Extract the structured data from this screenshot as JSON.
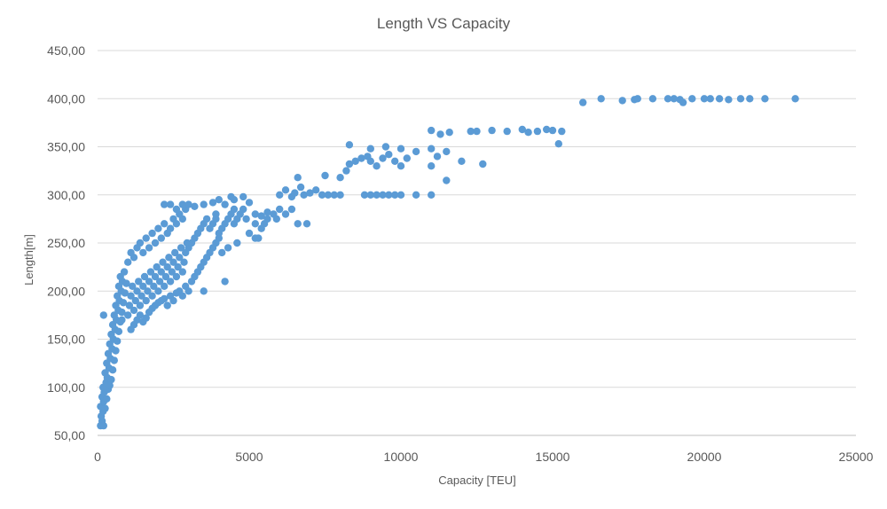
{
  "chart_data": {
    "type": "scatter",
    "title": "Length VS Capacity",
    "xlabel": "Capacity [TEU]",
    "ylabel": "Length[m]",
    "xlim": [
      0,
      25000
    ],
    "ylim": [
      50,
      450
    ],
    "x_ticks": [
      "0",
      "5000",
      "10000",
      "15000",
      "20000",
      "25000"
    ],
    "y_ticks": [
      "50,00",
      "100,00",
      "150,00",
      "200,00",
      "250,00",
      "300,00",
      "350,00",
      "400,00",
      "450,00"
    ],
    "grid": "horizontal",
    "legend": "none",
    "marker_color": "#5B9BD5",
    "series": [
      {
        "points": [
          [
            100,
            60
          ],
          [
            150,
            65
          ],
          [
            200,
            60
          ],
          [
            120,
            70
          ],
          [
            180,
            75
          ],
          [
            100,
            80
          ],
          [
            250,
            78
          ],
          [
            200,
            85
          ],
          [
            150,
            90
          ],
          [
            300,
            88
          ],
          [
            220,
            95
          ],
          [
            180,
            100
          ],
          [
            350,
            98
          ],
          [
            280,
            105
          ],
          [
            400,
            102
          ],
          [
            320,
            110
          ],
          [
            250,
            115
          ],
          [
            450,
            108
          ],
          [
            380,
            120
          ],
          [
            300,
            125
          ],
          [
            500,
            118
          ],
          [
            420,
            130
          ],
          [
            350,
            135
          ],
          [
            550,
            128
          ],
          [
            480,
            140
          ],
          [
            400,
            145
          ],
          [
            600,
            138
          ],
          [
            520,
            150
          ],
          [
            450,
            155
          ],
          [
            650,
            148
          ],
          [
            580,
            160
          ],
          [
            500,
            165
          ],
          [
            700,
            158
          ],
          [
            620,
            170
          ],
          [
            550,
            175
          ],
          [
            750,
            168
          ],
          [
            680,
            180
          ],
          [
            600,
            185
          ],
          [
            800,
            178
          ],
          [
            720,
            190
          ],
          [
            650,
            195
          ],
          [
            850,
            188
          ],
          [
            780,
            200
          ],
          [
            700,
            205
          ],
          [
            900,
            198
          ],
          [
            820,
            210
          ],
          [
            750,
            215
          ],
          [
            950,
            208
          ],
          [
            880,
            220
          ],
          [
            800,
            170
          ],
          [
            1000,
            175
          ],
          [
            1050,
            185
          ],
          [
            1100,
            195
          ],
          [
            1150,
            205
          ],
          [
            1200,
            180
          ],
          [
            1250,
            190
          ],
          [
            1300,
            200
          ],
          [
            1350,
            210
          ],
          [
            1400,
            185
          ],
          [
            1450,
            195
          ],
          [
            1500,
            205
          ],
          [
            1550,
            215
          ],
          [
            1600,
            190
          ],
          [
            1650,
            200
          ],
          [
            1700,
            210
          ],
          [
            1750,
            220
          ],
          [
            1800,
            195
          ],
          [
            1850,
            205
          ],
          [
            1900,
            215
          ],
          [
            1950,
            225
          ],
          [
            2000,
            200
          ],
          [
            2050,
            210
          ],
          [
            2100,
            220
          ],
          [
            2150,
            230
          ],
          [
            2200,
            205
          ],
          [
            2250,
            215
          ],
          [
            2300,
            225
          ],
          [
            2350,
            235
          ],
          [
            2400,
            210
          ],
          [
            2450,
            220
          ],
          [
            2500,
            230
          ],
          [
            2550,
            240
          ],
          [
            2600,
            215
          ],
          [
            2650,
            225
          ],
          [
            2700,
            235
          ],
          [
            2750,
            245
          ],
          [
            2800,
            220
          ],
          [
            2850,
            230
          ],
          [
            2900,
            240
          ],
          [
            2950,
            250
          ],
          [
            1000,
            230
          ],
          [
            1100,
            240
          ],
          [
            1200,
            235
          ],
          [
            1300,
            245
          ],
          [
            1400,
            250
          ],
          [
            1500,
            240
          ],
          [
            1600,
            255
          ],
          [
            1700,
            245
          ],
          [
            1800,
            260
          ],
          [
            1900,
            250
          ],
          [
            2000,
            265
          ],
          [
            2100,
            255
          ],
          [
            2200,
            270
          ],
          [
            2300,
            260
          ],
          [
            2400,
            265
          ],
          [
            2500,
            275
          ],
          [
            2600,
            270
          ],
          [
            2700,
            280
          ],
          [
            2800,
            275
          ],
          [
            2900,
            285
          ],
          [
            1100,
            160
          ],
          [
            1200,
            165
          ],
          [
            1300,
            170
          ],
          [
            1400,
            175
          ],
          [
            1500,
            168
          ],
          [
            1600,
            172
          ],
          [
            1700,
            178
          ],
          [
            1800,
            182
          ],
          [
            1900,
            185
          ],
          [
            2000,
            188
          ],
          [
            2100,
            190
          ],
          [
            2200,
            192
          ],
          [
            2300,
            185
          ],
          [
            2400,
            195
          ],
          [
            2500,
            190
          ],
          [
            2600,
            198
          ],
          [
            2700,
            200
          ],
          [
            2800,
            195
          ],
          [
            2900,
            205
          ],
          [
            3000,
            200
          ],
          [
            3100,
            210
          ],
          [
            3200,
            215
          ],
          [
            3300,
            220
          ],
          [
            3400,
            225
          ],
          [
            3500,
            230
          ],
          [
            3600,
            235
          ],
          [
            3700,
            240
          ],
          [
            3800,
            245
          ],
          [
            3900,
            250
          ],
          [
            4000,
            255
          ],
          [
            3000,
            245
          ],
          [
            3100,
            250
          ],
          [
            3200,
            255
          ],
          [
            3300,
            260
          ],
          [
            3400,
            265
          ],
          [
            3500,
            270
          ],
          [
            3600,
            275
          ],
          [
            3700,
            265
          ],
          [
            3800,
            270
          ],
          [
            3900,
            275
          ],
          [
            4000,
            260
          ],
          [
            4100,
            265
          ],
          [
            4200,
            270
          ],
          [
            4300,
            275
          ],
          [
            4400,
            280
          ],
          [
            4500,
            270
          ],
          [
            4600,
            275
          ],
          [
            4700,
            280
          ],
          [
            4800,
            285
          ],
          [
            4900,
            275
          ],
          [
            3000,
            290
          ],
          [
            3200,
            288
          ],
          [
            3500,
            290
          ],
          [
            3800,
            292
          ],
          [
            4000,
            295
          ],
          [
            4200,
            290
          ],
          [
            4500,
            295
          ],
          [
            4800,
            298
          ],
          [
            5000,
            292
          ],
          [
            4400,
            298
          ],
          [
            2200,
            290
          ],
          [
            2400,
            290
          ],
          [
            2600,
            285
          ],
          [
            2800,
            290
          ],
          [
            4100,
            240
          ],
          [
            4300,
            245
          ],
          [
            4600,
            250
          ],
          [
            5000,
            260
          ],
          [
            5200,
            255
          ],
          [
            5400,
            265
          ],
          [
            5500,
            270
          ],
          [
            5600,
            275
          ],
          [
            5800,
            280
          ],
          [
            6000,
            285
          ],
          [
            6200,
            280
          ],
          [
            6400,
            285
          ],
          [
            5200,
            280
          ],
          [
            5400,
            278
          ],
          [
            5600,
            282
          ],
          [
            5900,
            275
          ],
          [
            6000,
            300
          ],
          [
            6200,
            305
          ],
          [
            6400,
            298
          ],
          [
            6500,
            302
          ],
          [
            6700,
            308
          ],
          [
            6800,
            300
          ],
          [
            7000,
            302
          ],
          [
            6600,
            318
          ],
          [
            7200,
            305
          ],
          [
            7400,
            300
          ],
          [
            7600,
            300
          ],
          [
            7800,
            300
          ],
          [
            8000,
            300
          ],
          [
            7500,
            320
          ],
          [
            8000,
            318
          ],
          [
            8200,
            325
          ],
          [
            8300,
            332
          ],
          [
            8500,
            335
          ],
          [
            8700,
            338
          ],
          [
            8900,
            340
          ],
          [
            9000,
            335
          ],
          [
            9200,
            330
          ],
          [
            9400,
            338
          ],
          [
            9600,
            342
          ],
          [
            9800,
            335
          ],
          [
            10000,
            330
          ],
          [
            10200,
            338
          ],
          [
            8800,
            300
          ],
          [
            9000,
            300
          ],
          [
            9200,
            300
          ],
          [
            9400,
            300
          ],
          [
            9600,
            300
          ],
          [
            9800,
            300
          ],
          [
            10000,
            300
          ],
          [
            10500,
            300
          ],
          [
            11000,
            300
          ],
          [
            9000,
            348
          ],
          [
            9500,
            350
          ],
          [
            10000,
            348
          ],
          [
            8300,
            352
          ],
          [
            10500,
            345
          ],
          [
            11000,
            348
          ],
          [
            11200,
            340
          ],
          [
            11500,
            345
          ],
          [
            11000,
            330
          ],
          [
            12000,
            335
          ],
          [
            11500,
            315
          ],
          [
            12700,
            332
          ],
          [
            6600,
            270
          ],
          [
            6900,
            270
          ],
          [
            11000,
            367
          ],
          [
            11300,
            363
          ],
          [
            11600,
            365
          ],
          [
            12300,
            366
          ],
          [
            12500,
            366
          ],
          [
            13000,
            367
          ],
          [
            13500,
            366
          ],
          [
            14000,
            368
          ],
          [
            14200,
            365
          ],
          [
            14500,
            366
          ],
          [
            14800,
            368
          ],
          [
            15000,
            367
          ],
          [
            15300,
            366
          ],
          [
            15200,
            353
          ],
          [
            3500,
            200
          ],
          [
            4200,
            210
          ],
          [
            5300,
            255
          ],
          [
            3900,
            280
          ],
          [
            4500,
            285
          ],
          [
            5200,
            270
          ],
          [
            16000,
            396
          ],
          [
            16600,
            400
          ],
          [
            17300,
            398
          ],
          [
            17700,
            399
          ],
          [
            18300,
            400
          ],
          [
            18800,
            400
          ],
          [
            19200,
            399
          ],
          [
            19300,
            396
          ],
          [
            19600,
            400
          ],
          [
            20200,
            400
          ],
          [
            20500,
            400
          ],
          [
            20800,
            399
          ],
          [
            21200,
            400
          ],
          [
            21500,
            400
          ],
          [
            22000,
            400
          ],
          [
            23000,
            400
          ],
          [
            20000,
            400
          ],
          [
            19000,
            400
          ],
          [
            17800,
            400
          ],
          [
            200,
            175
          ]
        ]
      }
    ]
  }
}
